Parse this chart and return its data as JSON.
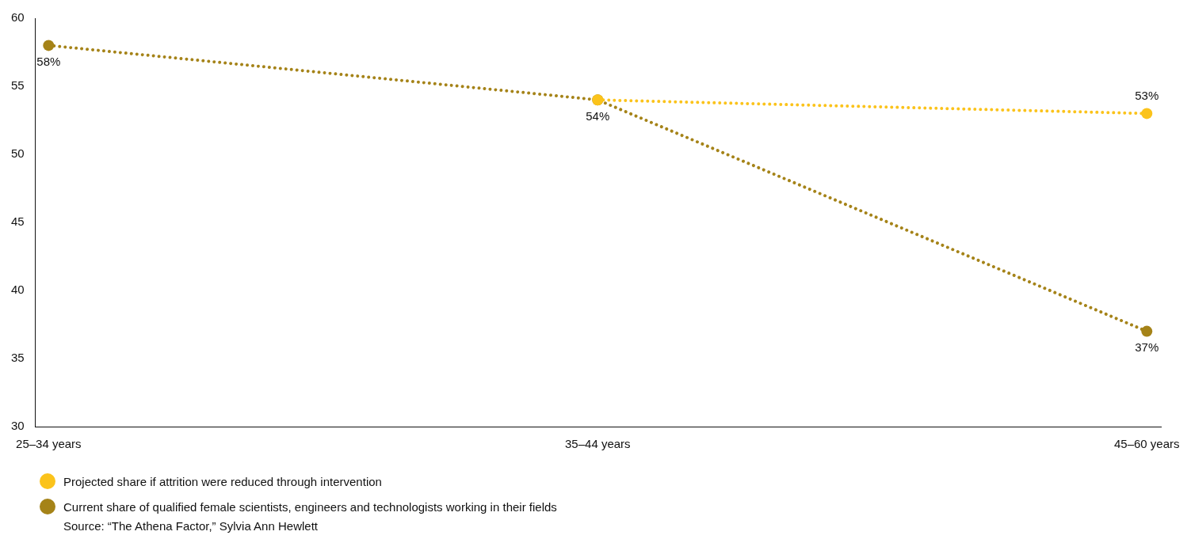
{
  "chart_data": {
    "type": "line",
    "categories": [
      "25–34 years",
      "35–44 years",
      "45–60 years"
    ],
    "series": [
      {
        "name": "Projected share if attrition were reduced through intervention",
        "color": "#fbc31b",
        "values": [
          null,
          54,
          53
        ],
        "value_labels": [
          null,
          null,
          "53%"
        ]
      },
      {
        "name": "Current share of qualified female scientists, engineers and technologists working in their fields",
        "color": "#a58318",
        "values": [
          58,
          54,
          37
        ],
        "value_labels": [
          "58%",
          "54%",
          "37%"
        ]
      }
    ],
    "ylim": [
      30,
      60
    ],
    "yticks": [
      30,
      35,
      40,
      45,
      50,
      55,
      60
    ],
    "grid": false,
    "legend": "bottom left",
    "marker": "circle",
    "line_style": "dotted",
    "annotations": [
      "Source: “The Athena Factor,” Sylvia Ann Hewlett"
    ]
  }
}
